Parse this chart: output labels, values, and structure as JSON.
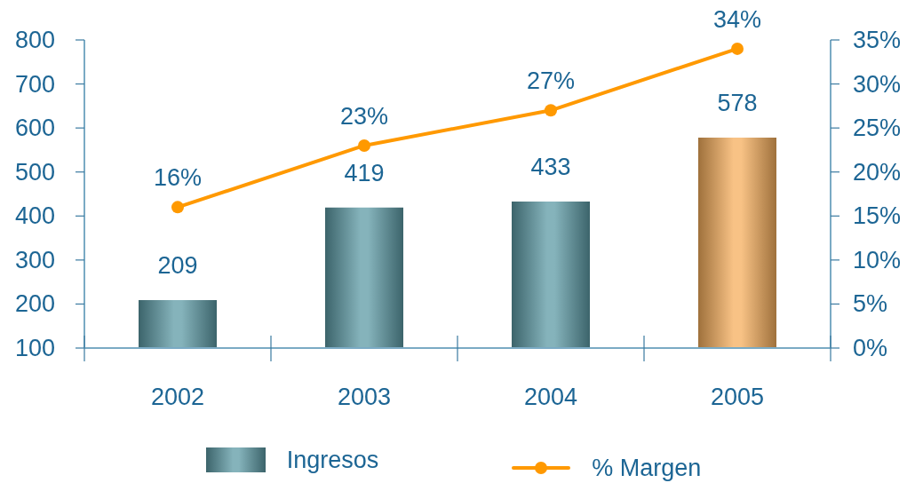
{
  "chart_data": {
    "type": "bar",
    "categories": [
      "2002",
      "2003",
      "2004",
      "2005"
    ],
    "series": [
      {
        "name": "Ingresos",
        "colors": [
          "#5c9aa4",
          "#5c9aa4",
          "#5c9aa4",
          "#f5ae5c"
        ],
        "values": [
          209,
          419,
          433,
          578
        ],
        "value_labels": [
          "209",
          "419",
          "433",
          "578"
        ]
      },
      {
        "name": "% Margen",
        "type": "line",
        "axis": "y2",
        "color": "#ff9900",
        "values": [
          16,
          23,
          27,
          34
        ],
        "value_labels": [
          "16%",
          "23%",
          "27%",
          "34%"
        ]
      }
    ],
    "ylim": [
      100,
      800
    ],
    "yticks": [
      100,
      200,
      300,
      400,
      500,
      600,
      700,
      800
    ],
    "y2lim": [
      0,
      35
    ],
    "y2ticks": [
      {
        "value": 0,
        "label": "0%"
      },
      {
        "value": 5,
        "label": "5%"
      },
      {
        "value": 10,
        "label": "10%"
      },
      {
        "value": 15,
        "label": "15%"
      },
      {
        "value": 20,
        "label": "20%"
      },
      {
        "value": 25,
        "label": "25%"
      },
      {
        "value": 30,
        "label": "30%"
      },
      {
        "value": 35,
        "label": "35%"
      }
    ],
    "legend": "bottom",
    "marker": "circle"
  }
}
